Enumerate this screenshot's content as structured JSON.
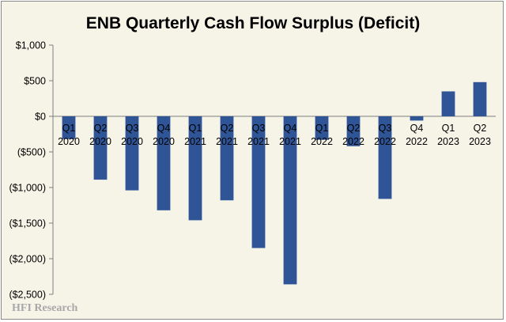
{
  "chart_data": {
    "type": "bar",
    "title": "ENB Quarterly Cash Flow Surplus (Deficit)",
    "categories": [
      [
        "Q1",
        "2020"
      ],
      [
        "Q2",
        "2020"
      ],
      [
        "Q3",
        "2020"
      ],
      [
        "Q4",
        "2020"
      ],
      [
        "Q1",
        "2021"
      ],
      [
        "Q2",
        "2021"
      ],
      [
        "Q3",
        "2021"
      ],
      [
        "Q4",
        "2021"
      ],
      [
        "Q1",
        "2022"
      ],
      [
        "Q2",
        "2022"
      ],
      [
        "Q3",
        "2022"
      ],
      [
        "Q4",
        "2022"
      ],
      [
        "Q1",
        "2023"
      ],
      [
        "Q2",
        "2023"
      ]
    ],
    "values": [
      -320,
      -890,
      -1040,
      -1320,
      -1460,
      -1180,
      -1850,
      -2360,
      -330,
      -420,
      -1160,
      -60,
      350,
      480
    ],
    "ylim": [
      -2500,
      1000
    ],
    "yticks": [
      1000,
      500,
      0,
      -500,
      -1000,
      -1500,
      -2000,
      -2500
    ],
    "ytick_labels": [
      "$1,000",
      "$500",
      "$0",
      "($500)",
      "($1,000)",
      "($1,500)",
      "($2,000)",
      "($2,500)"
    ],
    "xlabel": "",
    "ylabel": "",
    "grid": false,
    "legend": "none",
    "bar_color": "#2f5597",
    "background_color": "#f6f3e7"
  },
  "watermark": "HFI Research"
}
